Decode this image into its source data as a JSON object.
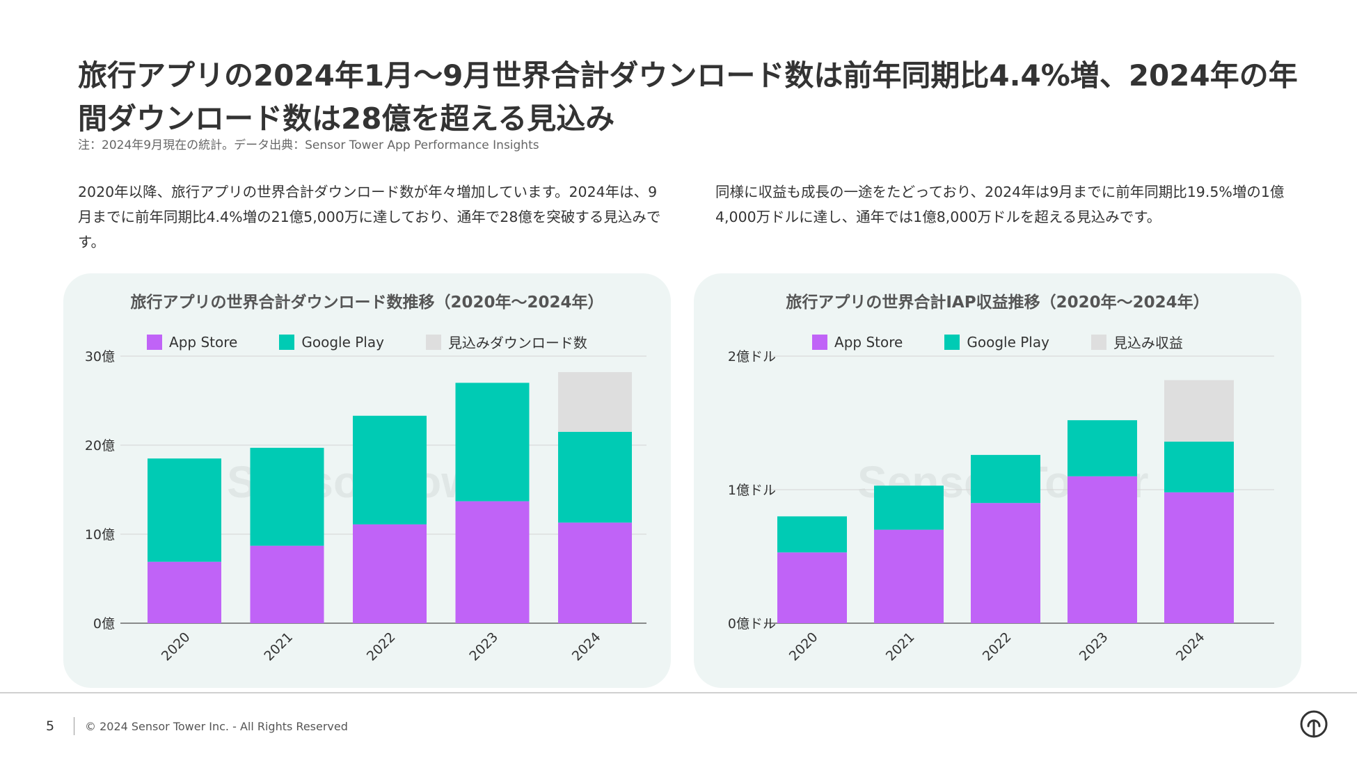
{
  "title": "旅行アプリの2024年1月〜9月世界合計ダウンロード数は前年同期比4.4%増、2024年の年間ダウンロード数は28億を超える見込み",
  "note": "注：2024年9月現在の統計。データ出典：Sensor Tower App Performance Insights",
  "text_left": "2020年以降、旅行アプリの世界合計ダウンロード数が年々増加しています。2024年は、9月までに前年同期比4.4%増の21億5,000万に達しており、通年で28億を突破する見込みです。",
  "text_right": "同様に収益も成長の一途をたどっており、2024年は9月までに前年同期比19.5%増の1億4,000万ドルに達し、通年では1億8,000万ドルを超える見込みです。",
  "colors": {
    "app_store": "#c063f7",
    "google_play": "#00cbb4",
    "forecast": "#dedede",
    "panel_bg": "#eef5f4"
  },
  "watermark": "Sensor Tower",
  "footer": {
    "page": "5",
    "copyright": "© 2024 Sensor Tower Inc. - All Rights Reserved"
  },
  "logo_icon": "sensor-tower-logo-icon",
  "chart_data": [
    {
      "type": "bar",
      "stacked": true,
      "title": "旅行アプリの世界合計ダウンロード数推移（2020年〜2024年）",
      "categories": [
        "2020",
        "2021",
        "2022",
        "2023",
        "2024"
      ],
      "series": [
        {
          "name": "App Store",
          "values": [
            0.69,
            0.87,
            1.11,
            1.37,
            1.13
          ]
        },
        {
          "name": "Google Play",
          "values": [
            1.16,
            1.1,
            1.22,
            1.33,
            1.02
          ]
        },
        {
          "name": "見込みダウンロード数",
          "values": [
            0,
            0,
            0,
            0,
            0.67
          ]
        }
      ],
      "unit": "billion downloads",
      "yticks": [
        "0億",
        "10億",
        "20億",
        "30億"
      ],
      "ylim": [
        0,
        3.0
      ],
      "legend": "top-center",
      "xlabel": "",
      "ylabel": ""
    },
    {
      "type": "bar",
      "stacked": true,
      "title": "旅行アプリの世界合計IAP収益推移（2020年〜2024年）",
      "categories": [
        "2020",
        "2021",
        "2022",
        "2023",
        "2024"
      ],
      "series": [
        {
          "name": "App Store",
          "values": [
            0.53,
            0.7,
            0.9,
            1.1,
            0.98
          ]
        },
        {
          "name": "Google Play",
          "values": [
            0.27,
            0.33,
            0.36,
            0.42,
            0.38
          ]
        },
        {
          "name": "見込み収益",
          "values": [
            0,
            0,
            0,
            0,
            0.46
          ]
        }
      ],
      "unit": "hundred million USD",
      "yticks": [
        "0億ドル",
        "1億ドル",
        "2億ドル"
      ],
      "ylim": [
        0,
        2.0
      ],
      "legend": "top-center",
      "xlabel": "",
      "ylabel": ""
    }
  ]
}
